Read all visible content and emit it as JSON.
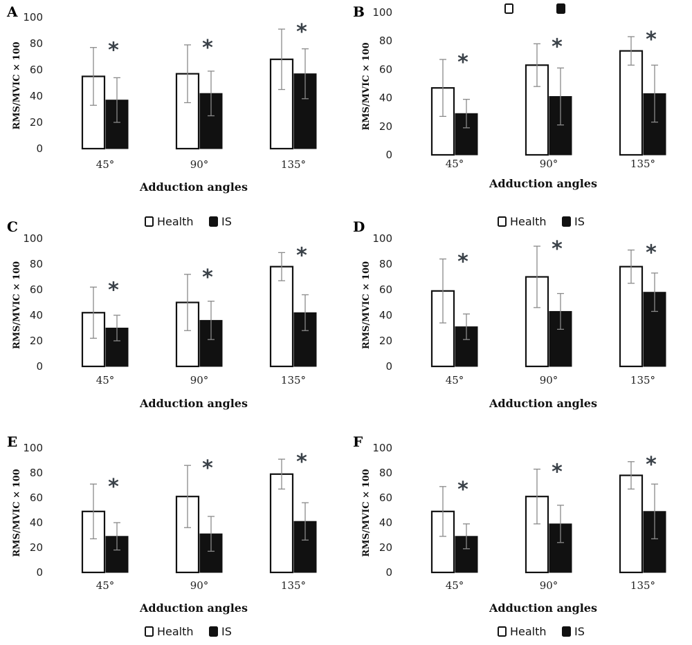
{
  "figure": {
    "series_names": [
      "Health",
      "IS"
    ],
    "colors": {
      "health_fill": "#ffffff",
      "is_fill": "#111111",
      "errorbar": "#8a8a8a",
      "significance": "#3a4148"
    }
  },
  "chart_data": [
    {
      "panel": "A",
      "type": "bar",
      "ylabel": "RMS/MVIC × 100",
      "xlabel": "Adduction angles",
      "categories": [
        "45°",
        "90°",
        "135°"
      ],
      "yticks": [
        0,
        20,
        40,
        60,
        80,
        100
      ],
      "ylim": [
        0,
        100
      ],
      "legend": {
        "show": false,
        "labels": []
      },
      "series": [
        {
          "name": "Health",
          "values": [
            55,
            57,
            68
          ],
          "errors": [
            22,
            22,
            23
          ]
        },
        {
          "name": "IS",
          "values": [
            37,
            42,
            57
          ],
          "errors": [
            17,
            17,
            19
          ]
        }
      ],
      "significance": [
        "*",
        "*",
        "*"
      ]
    },
    {
      "panel": "B",
      "type": "bar",
      "ylabel": "RMS/MVIC × 100",
      "xlabel": "Adduction angles",
      "categories": [
        "45°",
        "90°",
        "135°"
      ],
      "yticks": [
        0,
        20,
        40,
        60,
        80,
        100
      ],
      "ylim": [
        0,
        100
      ],
      "legend": {
        "show": true,
        "position": "top",
        "labels": [
          "",
          ""
        ]
      },
      "series": [
        {
          "name": "",
          "values": [
            47,
            63,
            73
          ],
          "errors": [
            20,
            15,
            10
          ]
        },
        {
          "name": "",
          "values": [
            29,
            41,
            43
          ],
          "errors": [
            10,
            20,
            20
          ]
        }
      ],
      "significance": [
        "*",
        "*",
        "*"
      ]
    },
    {
      "panel": "C",
      "type": "bar",
      "ylabel": "RMS/MVIC × 100",
      "xlabel": "Adduction angles",
      "categories": [
        "45°",
        "90°",
        "135°"
      ],
      "yticks": [
        0,
        20,
        40,
        60,
        80,
        100
      ],
      "ylim": [
        0,
        100
      ],
      "legend": {
        "show": true,
        "position": "top",
        "labels": [
          "Health",
          "IS"
        ]
      },
      "series": [
        {
          "name": "Health",
          "values": [
            42,
            50,
            78
          ],
          "errors": [
            20,
            22,
            11
          ]
        },
        {
          "name": "IS",
          "values": [
            30,
            36,
            42
          ],
          "errors": [
            10,
            15,
            14
          ]
        }
      ],
      "significance": [
        "*",
        "*",
        "*"
      ]
    },
    {
      "panel": "D",
      "type": "bar",
      "ylabel": "RMS/MVIC × 100",
      "xlabel": "Adduction angles",
      "categories": [
        "45°",
        "90°",
        "135°"
      ],
      "yticks": [
        0,
        20,
        40,
        60,
        80,
        100
      ],
      "ylim": [
        0,
        100
      ],
      "legend": {
        "show": true,
        "position": "top",
        "labels": [
          "Health",
          "IS"
        ]
      },
      "series": [
        {
          "name": "Health",
          "values": [
            59,
            70,
            78
          ],
          "errors": [
            25,
            24,
            13
          ]
        },
        {
          "name": "IS",
          "values": [
            31,
            43,
            58
          ],
          "errors": [
            10,
            14,
            15
          ]
        }
      ],
      "significance": [
        "*",
        "*",
        "*"
      ]
    },
    {
      "panel": "E",
      "type": "bar",
      "ylabel": "RMS/MVIC × 100",
      "xlabel": "Adduction angles",
      "categories": [
        "45°",
        "90°",
        "135°"
      ],
      "yticks": [
        0,
        20,
        40,
        60,
        80,
        100
      ],
      "ylim": [
        0,
        100
      ],
      "legend": {
        "show": true,
        "position": "bottom",
        "labels": [
          "Health",
          "IS"
        ]
      },
      "series": [
        {
          "name": "Health",
          "values": [
            49,
            61,
            79
          ],
          "errors": [
            22,
            25,
            12
          ]
        },
        {
          "name": "IS",
          "values": [
            29,
            31,
            41
          ],
          "errors": [
            11,
            14,
            15
          ]
        }
      ],
      "significance": [
        "*",
        "*",
        "*"
      ]
    },
    {
      "panel": "F",
      "type": "bar",
      "ylabel": "RMS/MVIC × 100",
      "xlabel": "Adduction angles",
      "categories": [
        "45°",
        "90°",
        "135°"
      ],
      "yticks": [
        0,
        20,
        40,
        60,
        80,
        100
      ],
      "ylim": [
        0,
        100
      ],
      "legend": {
        "show": true,
        "position": "bottom",
        "labels": [
          "Health",
          "IS"
        ]
      },
      "series": [
        {
          "name": "Health",
          "values": [
            49,
            61,
            78
          ],
          "errors": [
            20,
            22,
            11
          ]
        },
        {
          "name": "IS",
          "values": [
            29,
            39,
            49
          ],
          "errors": [
            10,
            15,
            22
          ]
        }
      ],
      "significance": [
        "*",
        "*",
        "*"
      ]
    }
  ]
}
